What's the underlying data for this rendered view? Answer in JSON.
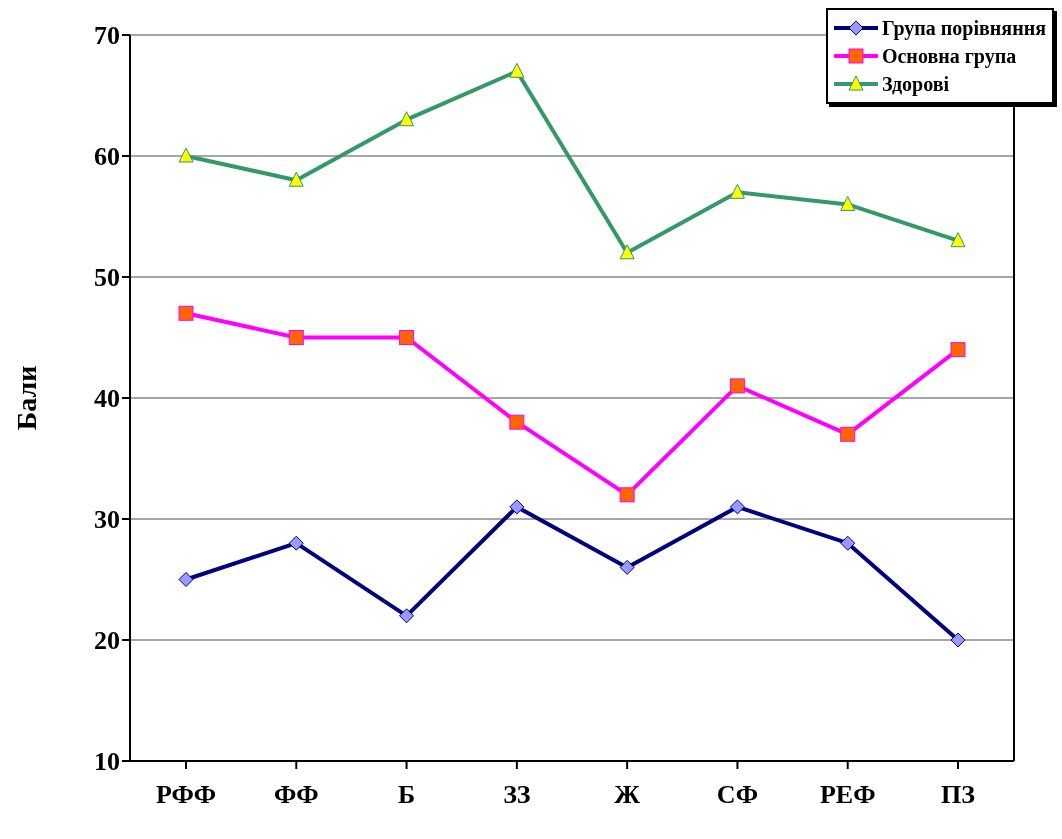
{
  "chart_data": {
    "type": "line",
    "ylabel": "Бали",
    "categories": [
      "РФФ",
      "ФФ",
      "Б",
      "ЗЗ",
      "Ж",
      "СФ",
      "РЕФ",
      "ПЗ"
    ],
    "series": [
      {
        "name": "Група порівняння",
        "color": "#000080",
        "marker": "diamond",
        "values": [
          25,
          28,
          22,
          31,
          26,
          31,
          28,
          20
        ]
      },
      {
        "name": "Основна група",
        "color": "#ff00ff",
        "marker": "square",
        "values": [
          47,
          45,
          45,
          38,
          32,
          41,
          37,
          44
        ]
      },
      {
        "name": "Здорові",
        "color": "#339966",
        "marker": "triangle",
        "values": [
          60,
          58,
          63,
          67,
          52,
          57,
          56,
          53
        ]
      }
    ],
    "ylim": [
      10,
      70
    ],
    "yticks": [
      10,
      20,
      30,
      40,
      50,
      60,
      70
    ],
    "grid": "y",
    "legend": "top right"
  }
}
